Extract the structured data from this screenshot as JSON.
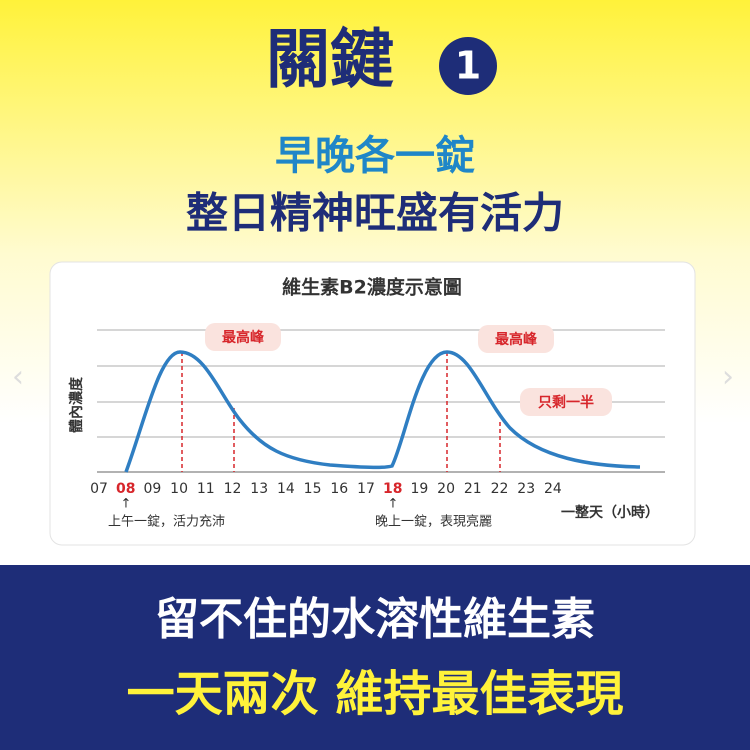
{
  "header": {
    "title": "關鍵",
    "badge": "1",
    "subtitle": "早晚各一錠",
    "tagline": "整日精神旺盛有活力"
  },
  "chart": {
    "title": "維生素B2濃度示意圖",
    "y_label": "體內濃度",
    "x_labels": [
      "07",
      "08",
      "09",
      "10",
      "11",
      "12",
      "13",
      "14",
      "15",
      "16",
      "17",
      "18",
      "19",
      "20",
      "21",
      "22",
      "23",
      "24"
    ],
    "x_unit": "一整天（小時）",
    "callouts": [
      "最高峰",
      "最高峰",
      "只剩一半"
    ],
    "notes": [
      "上午一錠，活力充沛",
      "晚上一錠，表現亮麗"
    ]
  },
  "footer": {
    "line1": "留不住的水溶性維生素",
    "line2": "一天兩次 維持最佳表現"
  }
}
